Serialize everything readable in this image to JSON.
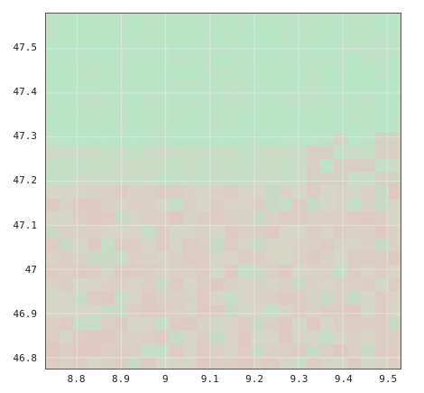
{
  "map": {
    "type": "raster",
    "grid_lines": true,
    "x_axis": {
      "ticks": [
        8.8,
        8.9,
        9.0,
        9.1,
        9.2,
        9.3,
        9.4,
        9.5
      ],
      "tick_labels": [
        "8.8",
        "8.9",
        "9",
        "9.1",
        "9.2",
        "9.3",
        "9.4",
        "9.5"
      ],
      "range": [
        8.73,
        9.53
      ]
    },
    "y_axis": {
      "ticks": [
        46.8,
        46.9,
        47.0,
        47.1,
        47.2,
        47.3,
        47.4,
        47.5
      ],
      "tick_labels": [
        "46.8",
        "46.9",
        "47",
        "47.1",
        "47.2",
        "47.3",
        "47.4",
        "47.5"
      ],
      "range": [
        46.775,
        47.58
      ]
    },
    "colors": {
      "upper_region": "#b8e6c4",
      "lower_region": "#d6d8c6",
      "pink_patches": "#e2c6c0",
      "grid_line": "#e6ece6",
      "frame": "#555555"
    }
  }
}
